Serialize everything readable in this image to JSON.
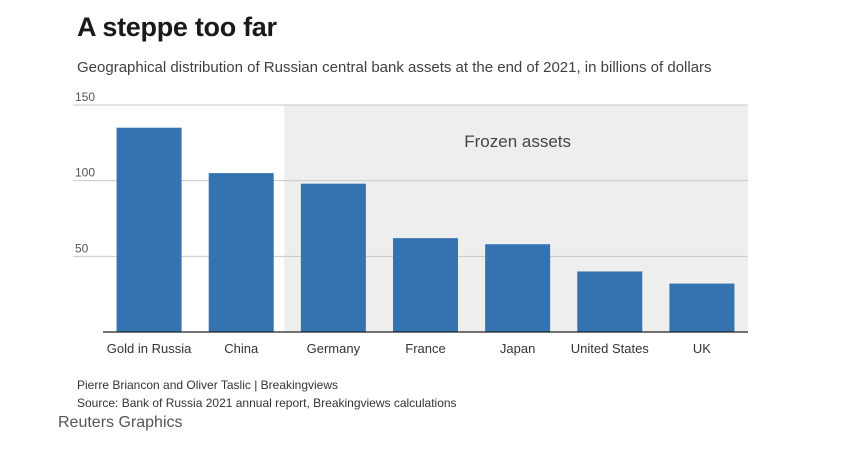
{
  "title": "A steppe too far",
  "subtitle": "Geographical distribution of Russian central bank assets at the end of 2021, in billions of dollars",
  "footer": {
    "credit": "Pierre Briancon and Oliver Taslic | Breakingviews",
    "source": "Source: Bank of Russia 2021 annual report, Breakingviews calculations",
    "brand": "Reuters Graphics"
  },
  "colors": {
    "bar": "#3572b0",
    "shade": "#eeeeee",
    "grid": "#c8c8c8",
    "axis": "#222222",
    "tick_text": "#555555"
  },
  "chart_data": {
    "type": "bar",
    "title": "A steppe too far",
    "subtitle": "Geographical distribution of Russian central bank assets at the end of 2021, in billions of dollars",
    "categories": [
      "Gold in Russia",
      "China",
      "Germany",
      "France",
      "Japan",
      "United States",
      "UK"
    ],
    "values": [
      135,
      105,
      98,
      62,
      58,
      40,
      32
    ],
    "ylim": [
      0,
      150
    ],
    "yticks": [
      50,
      100,
      150
    ],
    "grid": true,
    "annotation": {
      "text": "Frozen assets",
      "from_category": "Germany",
      "to_category": "UK"
    }
  }
}
